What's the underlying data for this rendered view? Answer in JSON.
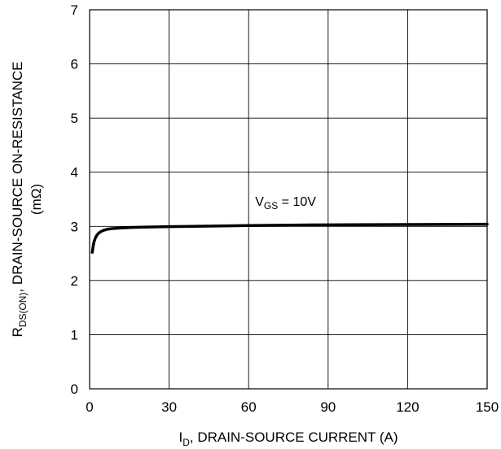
{
  "chart_data": {
    "type": "line",
    "xlabel": {
      "main": "I",
      "sub": "D",
      "rest": ", DRAIN-SOURCE CURRENT (A)"
    },
    "ylabel": {
      "main": "R",
      "sub": "DS(ON)",
      "rest": ", DRAIN-SOURCE ON-RESISTANCE",
      "line2": "(mΩ)"
    },
    "xlim": [
      0,
      150
    ],
    "ylim": [
      0,
      7
    ],
    "xticks": [
      0,
      30,
      60,
      90,
      120,
      150
    ],
    "yticks": [
      0,
      1,
      2,
      3,
      4,
      5,
      6,
      7
    ],
    "grid": true,
    "annotation": {
      "main": "V",
      "sub": "GS",
      "rest": " = 10V",
      "x": 60,
      "y": 3.5
    },
    "series": [
      {
        "name": "",
        "color": "#000000",
        "x": [
          1,
          1.3,
          1.7,
          2.2,
          2.8,
          3.5,
          4.5,
          5.5,
          7,
          9,
          12,
          16,
          20,
          30,
          45,
          60,
          80,
          100,
          120,
          150
        ],
        "y": [
          2.52,
          2.62,
          2.72,
          2.79,
          2.84,
          2.88,
          2.91,
          2.93,
          2.95,
          2.96,
          2.97,
          2.98,
          2.985,
          2.995,
          3.005,
          3.015,
          3.025,
          3.03,
          3.035,
          3.04
        ]
      }
    ]
  }
}
